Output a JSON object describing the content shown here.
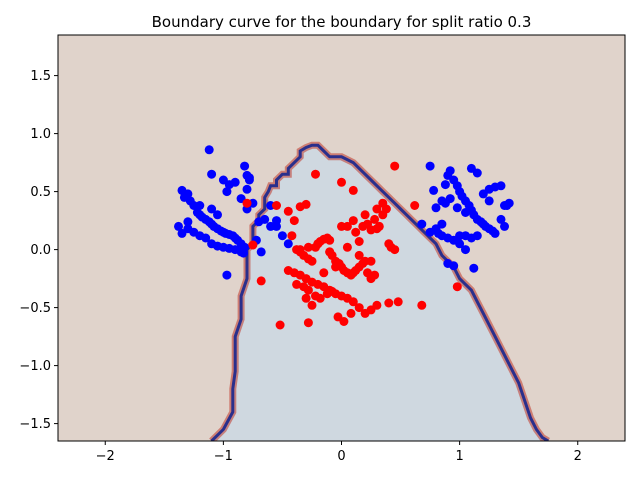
{
  "chart_data": {
    "type": "scatter",
    "title": "Boundary curve for the boundary for split ratio 0.3",
    "xlabel": "",
    "ylabel": "",
    "xlim": [
      -2.4,
      2.4
    ],
    "ylim": [
      -1.65,
      1.85
    ],
    "x_ticks": [
      -2,
      -1,
      0,
      1,
      2
    ],
    "y_ticks": [
      -1.5,
      -1.0,
      -0.5,
      0.0,
      0.5,
      1.0,
      1.5
    ],
    "x_tick_labels": [
      "−2",
      "−1",
      "0",
      "1",
      "2"
    ],
    "y_tick_labels": [
      "−1.5",
      "−1.0",
      "−0.5",
      "0.0",
      "0.5",
      "1.0",
      "1.5"
    ],
    "grid": false,
    "colors": {
      "outside_region": "#e0d3cb",
      "inside_region": "#cfd8e0",
      "boundary_inner": "#2a2f8c",
      "boundary_outer": "#c0392b",
      "class_blue": "#0000ff",
      "class_red": "#ff0000"
    },
    "boundary_curve": {
      "x": [
        -1.1,
        -1.0,
        -0.92,
        -0.92,
        -0.9,
        -0.9,
        -0.85,
        -0.85,
        -0.8,
        -0.8,
        -0.75,
        -0.75,
        -0.7,
        -0.7,
        -0.65,
        -0.65,
        -0.62,
        -0.6,
        -0.55,
        -0.55,
        -0.5,
        -0.45,
        -0.45,
        -0.4,
        -0.35,
        -0.35,
        -0.3,
        -0.25,
        -0.2,
        -0.15,
        -0.1,
        0.0,
        0.1,
        0.15,
        0.2,
        0.25,
        0.3,
        0.35,
        0.4,
        0.45,
        0.5,
        0.55,
        0.6,
        0.65,
        0.7,
        0.75,
        0.8,
        0.85,
        0.9,
        0.95,
        1.0,
        1.05,
        1.1,
        1.15,
        1.2,
        1.25,
        1.3,
        1.35,
        1.4,
        1.45,
        1.5,
        1.55,
        1.6,
        1.65,
        1.7,
        1.75
      ],
      "y": [
        -1.65,
        -1.55,
        -1.4,
        -1.2,
        -1.05,
        -0.75,
        -0.6,
        -0.4,
        -0.25,
        0.0,
        0.05,
        0.2,
        0.25,
        0.3,
        0.35,
        0.45,
        0.5,
        0.55,
        0.55,
        0.6,
        0.65,
        0.65,
        0.7,
        0.75,
        0.8,
        0.85,
        0.88,
        0.9,
        0.9,
        0.85,
        0.8,
        0.8,
        0.75,
        0.7,
        0.65,
        0.6,
        0.55,
        0.5,
        0.45,
        0.4,
        0.35,
        0.3,
        0.25,
        0.2,
        0.15,
        0.1,
        0.05,
        -0.05,
        -0.1,
        -0.15,
        -0.25,
        -0.3,
        -0.35,
        -0.45,
        -0.55,
        -0.65,
        -0.75,
        -0.85,
        -0.95,
        -1.05,
        -1.15,
        -1.3,
        -1.45,
        -1.55,
        -1.62,
        -1.65
      ]
    },
    "series": [
      {
        "color": "blue",
        "x": [
          -1.12,
          -1.1,
          -0.97,
          -0.97,
          -0.82,
          -0.8,
          -0.78,
          -0.75,
          -0.72,
          -0.7,
          -0.68,
          -0.6,
          -0.55,
          -0.5,
          -0.45,
          -1.35,
          -1.33,
          -1.3,
          -1.28,
          -1.25,
          -1.22,
          -1.2,
          -1.18,
          -1.15,
          -1.12,
          -1.1,
          -1.08,
          -1.05,
          -1.02,
          -1.0,
          -0.98,
          -0.95,
          -0.92,
          -0.9,
          -0.88,
          -0.85,
          -0.82,
          -1.38,
          -1.3,
          -1.25,
          -1.2,
          -1.15,
          -1.1,
          -1.05,
          -1.0,
          -0.95,
          -0.9,
          -0.85,
          -0.83,
          -0.8,
          -0.78,
          -1.35,
          -1.3,
          -1.2,
          -1.1,
          -1.05,
          -1.0,
          -0.95,
          -0.9,
          -0.85,
          -0.8,
          -0.65,
          -0.6,
          -0.55,
          0.75,
          0.78,
          0.8,
          0.85,
          0.88,
          0.9,
          0.92,
          0.95,
          0.98,
          1.0,
          1.02,
          1.05,
          1.08,
          1.1,
          1.12,
          1.15,
          1.18,
          1.2,
          1.22,
          1.25,
          1.28,
          1.3,
          1.35,
          1.38,
          1.4,
          1.42,
          0.68,
          0.75,
          0.8,
          0.85,
          0.9,
          0.95,
          1.0,
          1.05,
          1.1,
          1.15,
          1.2,
          1.25,
          1.3,
          1.35,
          0.9,
          0.95,
          1.05,
          1.12,
          0.85,
          0.82,
          0.88,
          0.92,
          0.98,
          1.0,
          1.05,
          1.1,
          1.15,
          1.25,
          1.38
        ],
        "y": [
          0.86,
          0.65,
          -0.22,
          0.5,
          0.72,
          0.64,
          0.62,
          0.4,
          0.08,
          0.24,
          -0.02,
          0.38,
          0.2,
          0.12,
          0.05,
          0.51,
          0.45,
          0.48,
          0.42,
          0.38,
          0.32,
          0.3,
          0.28,
          0.26,
          0.24,
          0.22,
          0.2,
          0.18,
          0.16,
          0.15,
          0.14,
          0.13,
          0.12,
          0.1,
          0.08,
          0.05,
          0.02,
          0.2,
          0.18,
          0.15,
          0.12,
          0.1,
          0.05,
          0.03,
          0.02,
          0.01,
          0.0,
          -0.02,
          -0.03,
          0.52,
          0.6,
          0.14,
          0.24,
          0.38,
          0.35,
          0.3,
          0.6,
          0.56,
          0.58,
          0.44,
          0.35,
          0.26,
          0.2,
          0.25,
          0.72,
          0.51,
          0.36,
          0.42,
          0.56,
          0.64,
          0.68,
          0.6,
          0.55,
          0.5,
          0.46,
          0.42,
          0.38,
          0.34,
          0.3,
          0.26,
          0.24,
          0.22,
          0.2,
          0.18,
          0.16,
          0.14,
          0.26,
          0.2,
          0.38,
          0.4,
          0.22,
          0.15,
          0.18,
          0.12,
          0.1,
          0.08,
          0.05,
          0.32,
          0.7,
          0.66,
          0.48,
          0.52,
          0.54,
          0.55,
          -0.12,
          -0.14,
          0.0,
          -0.16,
          0.22,
          0.14,
          0.4,
          0.44,
          0.36,
          0.12,
          0.12,
          0.1,
          0.12,
          0.42,
          0.38
        ]
      },
      {
        "color": "red",
        "x": [
          -0.22,
          0.1,
          0.45,
          0.62,
          -0.75,
          -0.8,
          -0.68,
          -0.45,
          -0.55,
          -0.3,
          -0.35,
          -0.4,
          -0.42,
          -0.38,
          -0.35,
          -0.32,
          -0.28,
          -0.25,
          -0.22,
          -0.2,
          -0.18,
          -0.15,
          -0.12,
          -0.1,
          -0.08,
          -0.05,
          -0.02,
          0.0,
          0.02,
          0.05,
          0.08,
          0.1,
          0.12,
          0.15,
          0.18,
          0.2,
          0.22,
          0.25,
          0.28,
          0.3,
          0.32,
          0.35,
          0.38,
          0.4,
          0.42,
          0.45,
          -0.45,
          -0.4,
          -0.35,
          -0.3,
          -0.25,
          -0.2,
          -0.15,
          -0.1,
          -0.05,
          0.0,
          0.05,
          0.1,
          0.15,
          0.2,
          0.25,
          0.3,
          -0.38,
          -0.32,
          -0.28,
          -0.22,
          -0.18,
          -0.12,
          -0.08,
          -0.03,
          0.02,
          0.08,
          0.12,
          0.18,
          0.22,
          0.28,
          -0.35,
          -0.28,
          -0.2,
          -0.1,
          0.0,
          0.1,
          0.2,
          0.3,
          -0.3,
          -0.25,
          -0.15,
          -0.05,
          0.05,
          0.15,
          0.25,
          -0.52,
          -0.28,
          0.0,
          0.05,
          0.4,
          0.48,
          0.68,
          0.98,
          0.25,
          0.35,
          -0.1,
          0.15
        ],
        "y": [
          0.65,
          0.51,
          0.72,
          0.38,
          0.04,
          0.4,
          -0.27,
          0.33,
          0.38,
          0.39,
          0.37,
          0.25,
          0.12,
          0.0,
          -0.02,
          -0.05,
          -0.08,
          -0.1,
          0.02,
          0.05,
          0.07,
          0.09,
          0.1,
          -0.02,
          -0.05,
          -0.1,
          -0.12,
          -0.15,
          -0.18,
          -0.2,
          -0.22,
          -0.2,
          -0.18,
          -0.15,
          -0.12,
          -0.1,
          -0.2,
          -0.25,
          -0.22,
          0.18,
          0.2,
          0.3,
          0.35,
          0.05,
          0.02,
          0.0,
          -0.18,
          -0.2,
          -0.22,
          -0.25,
          -0.28,
          -0.3,
          -0.32,
          -0.35,
          -0.38,
          -0.4,
          -0.42,
          -0.45,
          -0.5,
          -0.55,
          -0.52,
          -0.48,
          -0.3,
          -0.32,
          -0.35,
          -0.4,
          -0.42,
          -0.38,
          -0.36,
          -0.58,
          -0.62,
          -0.55,
          0.15,
          0.2,
          0.22,
          0.26,
          0.0,
          0.02,
          0.05,
          0.08,
          0.2,
          0.25,
          0.3,
          0.35,
          -0.42,
          -0.48,
          -0.2,
          -0.15,
          0.02,
          -0.05,
          -0.1,
          -0.65,
          -0.63,
          0.58,
          0.2,
          -0.46,
          -0.45,
          -0.48,
          -0.32,
          0.17,
          0.4,
          -0.02,
          0.07
        ]
      }
    ]
  }
}
